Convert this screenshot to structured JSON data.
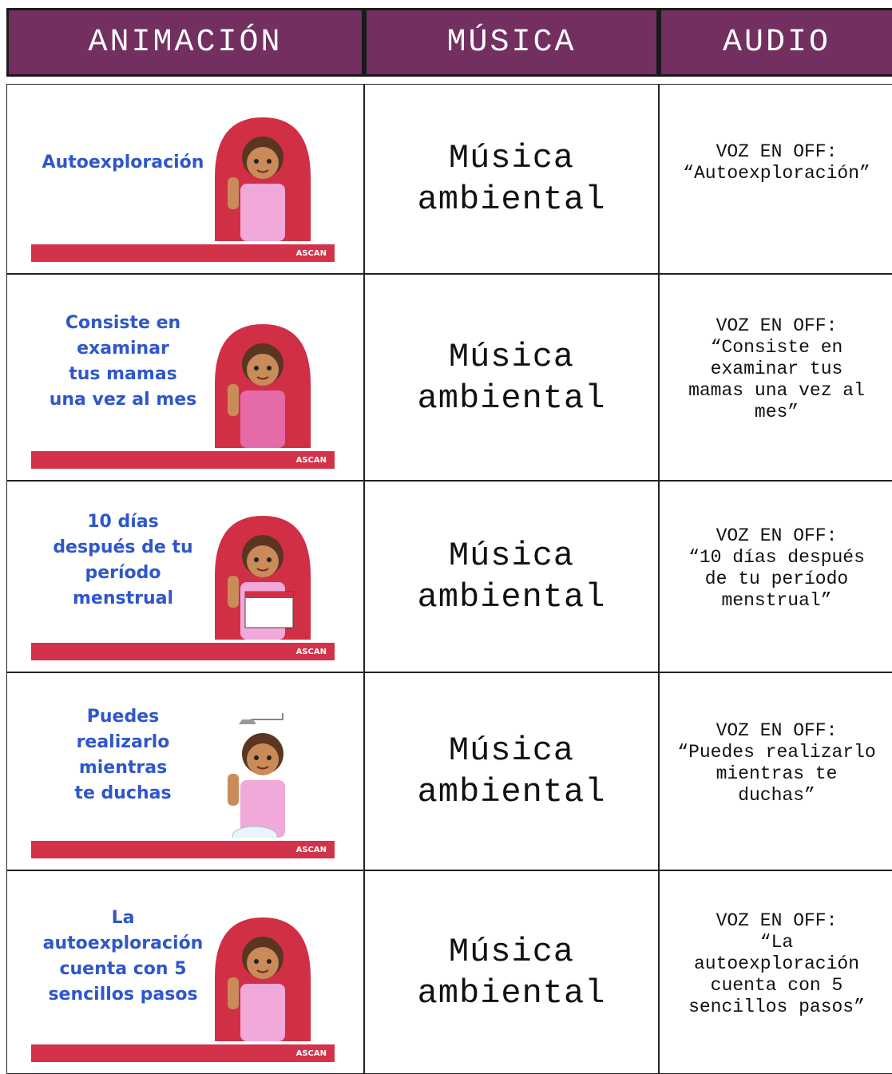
{
  "header": [
    "ANIMACIÓN",
    "MÚSICA",
    "AUDIO"
  ],
  "rows": [
    {
      "animation": {
        "text_lines": [
          "Autoexploración"
        ],
        "logo": "ASCAN"
      },
      "music_lines": [
        "Música",
        "ambiental"
      ],
      "audio_lines": [
        "VOZ EN OFF:",
        "“Autoexploración”"
      ]
    },
    {
      "animation": {
        "text_lines": [
          "Consiste en",
          "examinar",
          "tus mamas",
          "una vez al mes"
        ],
        "logo": "ASCAN"
      },
      "music_lines": [
        "Música",
        "ambiental"
      ],
      "audio_lines": [
        "VOZ EN OFF:",
        "“Consiste en",
        "examinar tus",
        "mamas una vez al",
        "mes”"
      ]
    },
    {
      "animation": {
        "text_lines": [
          "10 días",
          "después de tu",
          "período",
          "menstrual"
        ],
        "logo": "ASCAN"
      },
      "music_lines": [
        "Música",
        "ambiental"
      ],
      "audio_lines": [
        "VOZ EN OFF:",
        "“10 días después",
        "de tu período",
        "menstrual”"
      ]
    },
    {
      "animation": {
        "text_lines": [
          "Puedes",
          "realizarlo",
          "mientras",
          "te duchas"
        ],
        "logo": "ASCAN"
      },
      "music_lines": [
        "Música",
        "ambiental"
      ],
      "audio_lines": [
        "VOZ EN OFF:",
        "“Puedes realizarlo",
        "mientras te",
        "duchas”"
      ]
    },
    {
      "animation": {
        "text_lines": [
          "La",
          "autoexploración",
          "cuenta con 5",
          "sencillos pasos"
        ],
        "logo": "ASCAN"
      },
      "music_lines": [
        "Música",
        "ambiental"
      ],
      "audio_lines": [
        "VOZ EN OFF:",
        "“La",
        "autoexploración",
        "cuenta con 5",
        "sencillos pasos”"
      ]
    }
  ]
}
